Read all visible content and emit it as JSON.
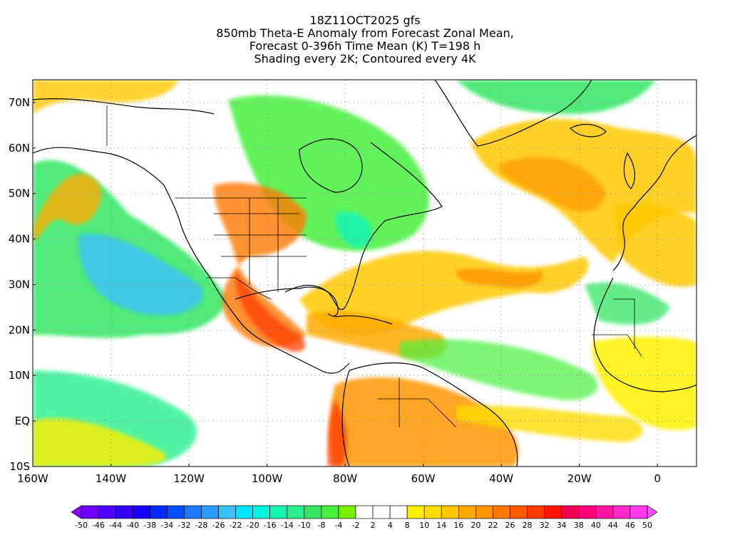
{
  "titles": [
    "18Z11OCT2025 gfs",
    "850mb Theta-E Anomaly from Forecast Zonal Mean,",
    "Forecast 0-396h Time Mean (K) T=198 h",
    "Shading every 2K; Contoured every 4K"
  ],
  "map": {
    "projection": "lat-lon",
    "lon_range": [
      -160,
      10
    ],
    "lat_range": [
      -10,
      75
    ],
    "lat_labels": [
      {
        "lat": 70,
        "text": "70N"
      },
      {
        "lat": 60,
        "text": "60N"
      },
      {
        "lat": 50,
        "text": "50N"
      },
      {
        "lat": 40,
        "text": "40N"
      },
      {
        "lat": 30,
        "text": "30N"
      },
      {
        "lat": 20,
        "text": "20N"
      },
      {
        "lat": 10,
        "text": "10N"
      },
      {
        "lat": 0,
        "text": "EQ"
      },
      {
        "lat": -10,
        "text": "10S"
      }
    ],
    "lon_labels": [
      {
        "lon": -160,
        "text": "160W"
      },
      {
        "lon": -140,
        "text": "140W"
      },
      {
        "lon": -120,
        "text": "120W"
      },
      {
        "lon": -100,
        "text": "100W"
      },
      {
        "lon": -80,
        "text": "80W"
      },
      {
        "lon": -60,
        "text": "60W"
      },
      {
        "lon": -40,
        "text": "40W"
      },
      {
        "lon": -20,
        "text": "20W"
      },
      {
        "lon": 0,
        "text": "0"
      }
    ],
    "grid": "dotted"
  },
  "colorbar": {
    "labels": [
      "-50",
      "-46",
      "-44",
      "-40",
      "-38",
      "-34",
      "-32",
      "-28",
      "-26",
      "-22",
      "-20",
      "-16",
      "-14",
      "-10",
      "-8",
      "-4",
      "-2",
      "2",
      "4",
      "8",
      "10",
      "14",
      "16",
      "20",
      "22",
      "26",
      "28",
      "32",
      "34",
      "38",
      "40",
      "44",
      "46",
      "50"
    ],
    "colors": [
      "#8a00ff",
      "#6e00ff",
      "#5000ff",
      "#3200ff",
      "#1800ff",
      "#0028ff",
      "#0050ff",
      "#1878ff",
      "#289cff",
      "#3cc0ff",
      "#00e6ff",
      "#00f5dc",
      "#14f5b4",
      "#28f08c",
      "#32e664",
      "#46f03c",
      "#78f000",
      "#ffffff",
      "#ffffff",
      "#ffffff",
      "#fff000",
      "#ffdc00",
      "#ffc800",
      "#ffaa00",
      "#ff9600",
      "#ff7800",
      "#ff5a00",
      "#ff3c00",
      "#ff1400",
      "#f00050",
      "#ff0078",
      "#ff14a0",
      "#ff28c8",
      "#ff3cf0",
      "#ff50ff"
    ]
  }
}
